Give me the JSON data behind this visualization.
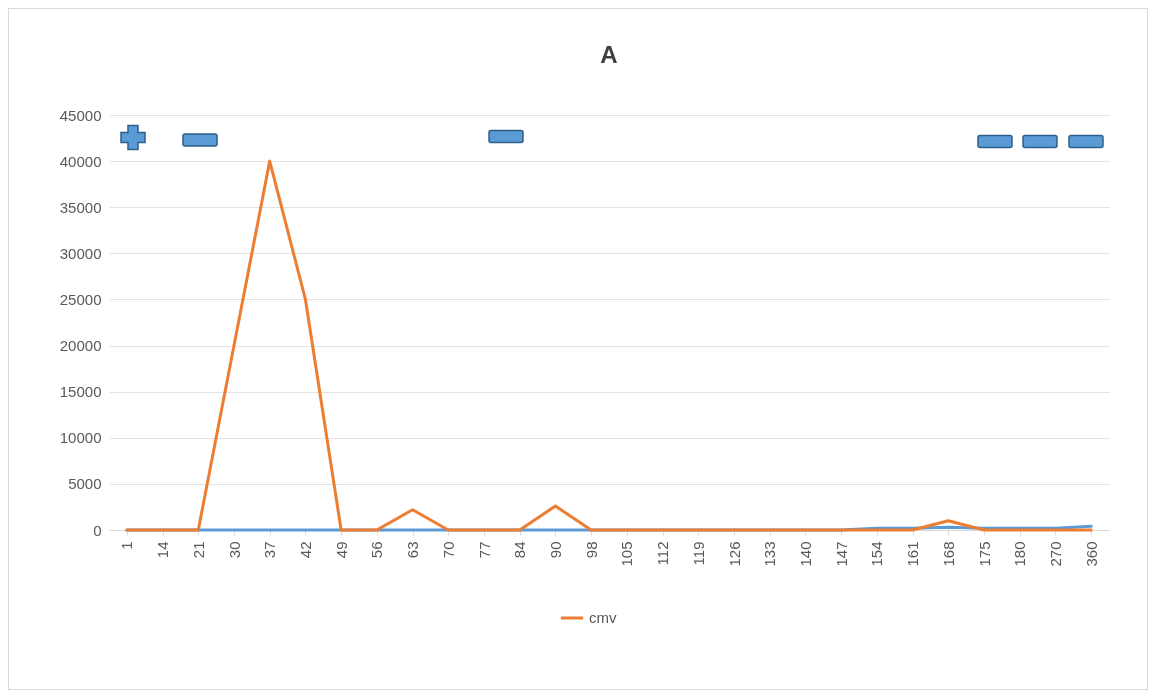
{
  "chart_data": {
    "type": "line",
    "title": "A",
    "categories": [
      "1",
      "14",
      "21",
      "30",
      "37",
      "42",
      "49",
      "56",
      "63",
      "70",
      "77",
      "84",
      "90",
      "98",
      "105",
      "112",
      "119",
      "126",
      "133",
      "140",
      "147",
      "154",
      "161",
      "168",
      "175",
      "180",
      "270",
      "360"
    ],
    "series": [
      {
        "color": "#5b9bd5",
        "values": [
          0,
          0,
          0,
          0,
          0,
          0,
          0,
          0,
          0,
          0,
          0,
          0,
          0,
          0,
          0,
          0,
          0,
          0,
          0,
          0,
          0,
          200,
          200,
          300,
          200,
          200,
          200,
          400
        ]
      },
      {
        "name": "cmv",
        "color": "#ed7d31",
        "values": [
          0,
          0,
          0,
          20000,
          40000,
          25000,
          0,
          0,
          2200,
          0,
          0,
          0,
          2600,
          0,
          0,
          0,
          0,
          0,
          0,
          0,
          0,
          0,
          0,
          1000,
          0,
          0,
          0,
          0
        ]
      }
    ],
    "ylim": [
      0,
      45000
    ],
    "yticks": [
      0,
      5000,
      10000,
      15000,
      20000,
      25000,
      30000,
      35000,
      40000,
      45000
    ],
    "grid": "y",
    "legend": "bottom"
  }
}
